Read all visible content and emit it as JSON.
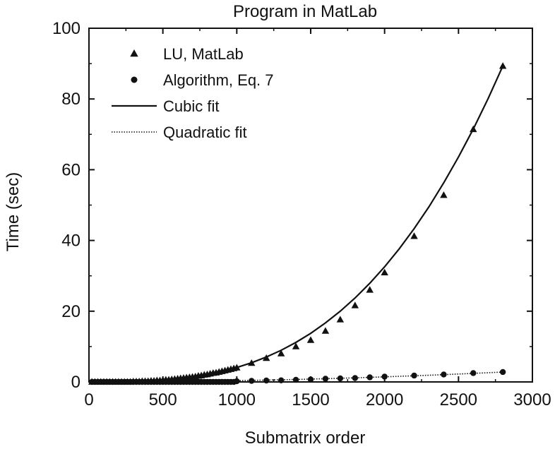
{
  "chart_data": {
    "type": "scatter",
    "title": "Program in MatLab",
    "xlabel": "Submatrix order",
    "ylabel": "Time (sec)",
    "xlim": [
      0,
      3000
    ],
    "ylim": [
      0,
      100
    ],
    "xticks": [
      0,
      500,
      1000,
      1500,
      2000,
      2500,
      3000
    ],
    "yticks": [
      0,
      20,
      40,
      60,
      80,
      100
    ],
    "grid": false,
    "legend_position": "top-left",
    "legend": [
      {
        "label": "LU, MatLab",
        "marker": "triangle"
      },
      {
        "label": "Algorithm, Eq. 7",
        "marker": "circle"
      },
      {
        "label": "Cubic fit",
        "line": "solid"
      },
      {
        "label": "Quadratic fit",
        "line": "dotted"
      }
    ],
    "series": [
      {
        "name": "LU, MatLab",
        "marker": "triangle",
        "x": [
          20,
          40,
          60,
          80,
          100,
          120,
          140,
          160,
          180,
          200,
          220,
          240,
          260,
          280,
          300,
          320,
          340,
          360,
          380,
          400,
          420,
          440,
          460,
          480,
          500,
          520,
          540,
          560,
          580,
          600,
          620,
          640,
          660,
          680,
          700,
          720,
          740,
          760,
          780,
          800,
          820,
          840,
          860,
          880,
          900,
          920,
          940,
          960,
          980,
          1000,
          1100,
          1200,
          1300,
          1400,
          1500,
          1600,
          1700,
          1800,
          1900,
          2000,
          2200,
          2400,
          2600,
          2800
        ],
        "y": [
          0,
          0,
          0,
          0,
          0,
          0,
          0,
          0,
          0,
          0,
          0,
          0,
          0,
          0,
          0.1,
          0.1,
          0.1,
          0.2,
          0.2,
          0.2,
          0.3,
          0.3,
          0.4,
          0.4,
          0.5,
          0.6,
          0.6,
          0.7,
          0.8,
          0.9,
          1.0,
          1.1,
          1.2,
          1.3,
          1.4,
          1.5,
          1.7,
          1.8,
          2.0,
          2.1,
          2.3,
          2.5,
          2.6,
          2.8,
          3.0,
          3.2,
          3.4,
          3.6,
          3.8,
          4.0,
          5.3,
          6.7,
          8.0,
          10.0,
          11.8,
          14.4,
          17.6,
          21.6,
          26.0,
          30.9,
          41.2,
          52.8,
          71.4,
          89.3
        ]
      },
      {
        "name": "Algorithm, Eq. 7",
        "marker": "circle",
        "x": [
          20,
          40,
          60,
          80,
          100,
          120,
          140,
          160,
          180,
          200,
          220,
          240,
          260,
          280,
          300,
          320,
          340,
          360,
          380,
          400,
          420,
          440,
          460,
          480,
          500,
          520,
          540,
          560,
          580,
          600,
          620,
          640,
          660,
          680,
          700,
          720,
          740,
          760,
          780,
          800,
          820,
          840,
          860,
          880,
          900,
          920,
          940,
          960,
          980,
          1000,
          1100,
          1200,
          1300,
          1400,
          1500,
          1600,
          1700,
          1800,
          1900,
          2000,
          2200,
          2400,
          2600,
          2800
        ],
        "y": [
          0,
          0,
          0,
          0,
          0,
          0,
          0,
          0,
          0,
          0,
          0,
          0,
          0,
          0,
          0,
          0,
          0,
          0,
          0,
          0,
          0,
          0,
          0,
          0,
          0,
          0,
          0,
          0,
          0,
          0,
          0,
          0,
          0,
          0,
          0,
          0,
          0,
          0,
          0,
          0,
          0,
          0,
          0,
          0,
          0,
          0,
          0,
          0,
          0,
          0.2,
          0.3,
          0.4,
          0.45,
          0.6,
          0.7,
          0.9,
          1.0,
          1.1,
          1.3,
          1.5,
          1.8,
          2.1,
          2.5,
          2.8
        ]
      },
      {
        "name": "Cubic fit",
        "line": "solid",
        "x": [
          0,
          100,
          200,
          300,
          400,
          500,
          600,
          700,
          800,
          900,
          1000,
          1100,
          1200,
          1300,
          1400,
          1500,
          1600,
          1700,
          1800,
          1900,
          2000,
          2100,
          2200,
          2300,
          2400,
          2500,
          2600,
          2700,
          2800
        ],
        "y": [
          0,
          0.004,
          0.03,
          0.11,
          0.26,
          0.51,
          0.88,
          1.4,
          2.09,
          2.97,
          4.07,
          5.42,
          7.04,
          8.95,
          11.17,
          13.74,
          16.68,
          20.0,
          23.74,
          27.91,
          32.56,
          37.69,
          43.34,
          49.53,
          56.28,
          63.59,
          71.52,
          80.08,
          89.3
        ]
      },
      {
        "name": "Quadratic fit",
        "line": "dotted",
        "x": [
          0,
          200,
          400,
          600,
          800,
          1000,
          1200,
          1400,
          1600,
          1800,
          2000,
          2200,
          2400,
          2600,
          2800
        ],
        "y": [
          0,
          0.01,
          0.06,
          0.12,
          0.23,
          0.36,
          0.51,
          0.7,
          0.91,
          1.16,
          1.43,
          1.73,
          2.06,
          2.41,
          2.8
        ]
      }
    ]
  }
}
